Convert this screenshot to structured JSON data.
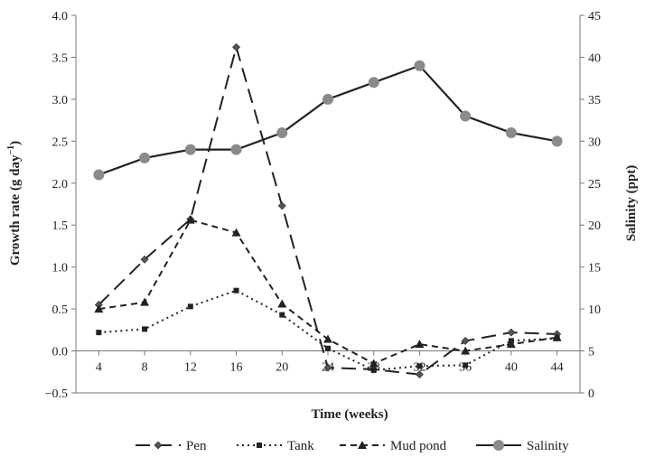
{
  "chart_data": {
    "type": "line",
    "x": [
      4,
      8,
      12,
      16,
      20,
      24,
      28,
      32,
      36,
      40,
      44
    ],
    "xlabel": "Time (weeks)",
    "ylabel_left": "Growth rate (g day",
    "ylabel_left_sup": "−1",
    "ylabel_left_close": ")",
    "ylabel_right": "Salinity (ppt)",
    "ylim_left": [
      -0.5,
      4.0
    ],
    "ylim_right": [
      0,
      45
    ],
    "yticks_left": [
      "−0.5",
      "0.0",
      "0.5",
      "1.0",
      "1.5",
      "2.0",
      "2.5",
      "3.0",
      "3.5",
      "4.0"
    ],
    "yticks_right": [
      "0",
      "5",
      "10",
      "15",
      "20",
      "25",
      "30",
      "35",
      "40",
      "45"
    ],
    "xticks": [
      "4",
      "8",
      "12",
      "16",
      "20",
      "24",
      "28",
      "32",
      "36",
      "40",
      "44"
    ],
    "grid": false,
    "legend_position": "bottom",
    "series": [
      {
        "name": "Pen",
        "axis": "left",
        "marker": "diamond",
        "dash": "long-dash",
        "color": "#222222",
        "values": [
          0.55,
          1.09,
          1.57,
          3.62,
          1.73,
          -0.2,
          -0.22,
          -0.28,
          0.12,
          0.22,
          0.2
        ]
      },
      {
        "name": "Tank",
        "axis": "left",
        "marker": "square",
        "dash": "dotted",
        "color": "#222222",
        "values": [
          0.22,
          0.26,
          0.53,
          0.72,
          0.43,
          0.03,
          -0.23,
          -0.18,
          -0.17,
          0.12,
          0.15
        ]
      },
      {
        "name": "Mud pond",
        "axis": "left",
        "marker": "triangle",
        "dash": "dashed",
        "color": "#222222",
        "values": [
          0.5,
          0.58,
          1.56,
          1.41,
          0.56,
          0.14,
          -0.15,
          0.08,
          -0.0,
          0.08,
          0.16
        ]
      },
      {
        "name": "Salinity",
        "axis": "right",
        "marker": "circle",
        "dash": "solid",
        "color": "#222222",
        "marker_color": "#8a8a8a",
        "values": [
          26,
          28,
          29,
          29,
          31,
          35,
          37,
          39,
          33,
          31,
          30
        ]
      }
    ]
  }
}
